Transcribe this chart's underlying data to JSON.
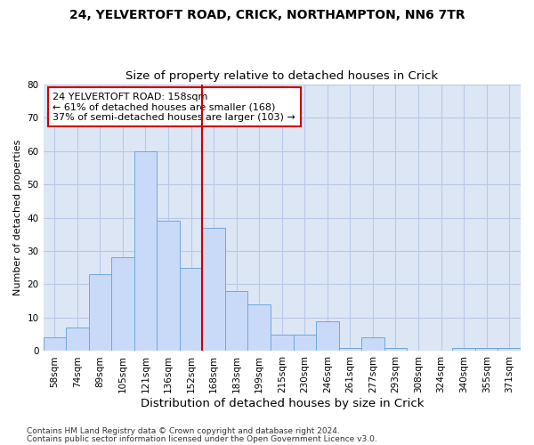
{
  "title1": "24, YELVERTOFT ROAD, CRICK, NORTHAMPTON, NN6 7TR",
  "title2": "Size of property relative to detached houses in Crick",
  "xlabel": "Distribution of detached houses by size in Crick",
  "ylabel": "Number of detached properties",
  "categories": [
    "58sqm",
    "74sqm",
    "89sqm",
    "105sqm",
    "121sqm",
    "136sqm",
    "152sqm",
    "168sqm",
    "183sqm",
    "199sqm",
    "215sqm",
    "230sqm",
    "246sqm",
    "261sqm",
    "277sqm",
    "293sqm",
    "308sqm",
    "324sqm",
    "340sqm",
    "355sqm",
    "371sqm"
  ],
  "values": [
    4,
    7,
    23,
    28,
    60,
    39,
    25,
    37,
    18,
    14,
    5,
    5,
    9,
    1,
    4,
    1,
    0,
    0,
    1,
    1,
    1
  ],
  "bar_color": "#c9daf8",
  "bar_edge_color": "#6fa8dc",
  "vline_color": "#cc0000",
  "vline_x_index": 7,
  "annotation_text": "24 YELVERTOFT ROAD: 158sqm\n← 61% of detached houses are smaller (168)\n37% of semi-detached houses are larger (103) →",
  "annotation_box_facecolor": "#ffffff",
  "annotation_box_edgecolor": "#cc0000",
  "ylim": [
    0,
    80
  ],
  "yticks": [
    0,
    10,
    20,
    30,
    40,
    50,
    60,
    70,
    80
  ],
  "fig_facecolor": "#ffffff",
  "plot_facecolor": "#dce6f5",
  "grid_color": "#b8c8e8",
  "title1_fontsize": 10,
  "title2_fontsize": 9.5,
  "xlabel_fontsize": 9.5,
  "ylabel_fontsize": 8,
  "tick_fontsize": 7.5,
  "annot_fontsize": 8,
  "footer_fontsize": 6.5,
  "footer1": "Contains HM Land Registry data © Crown copyright and database right 2024.",
  "footer2": "Contains public sector information licensed under the Open Government Licence v3.0."
}
